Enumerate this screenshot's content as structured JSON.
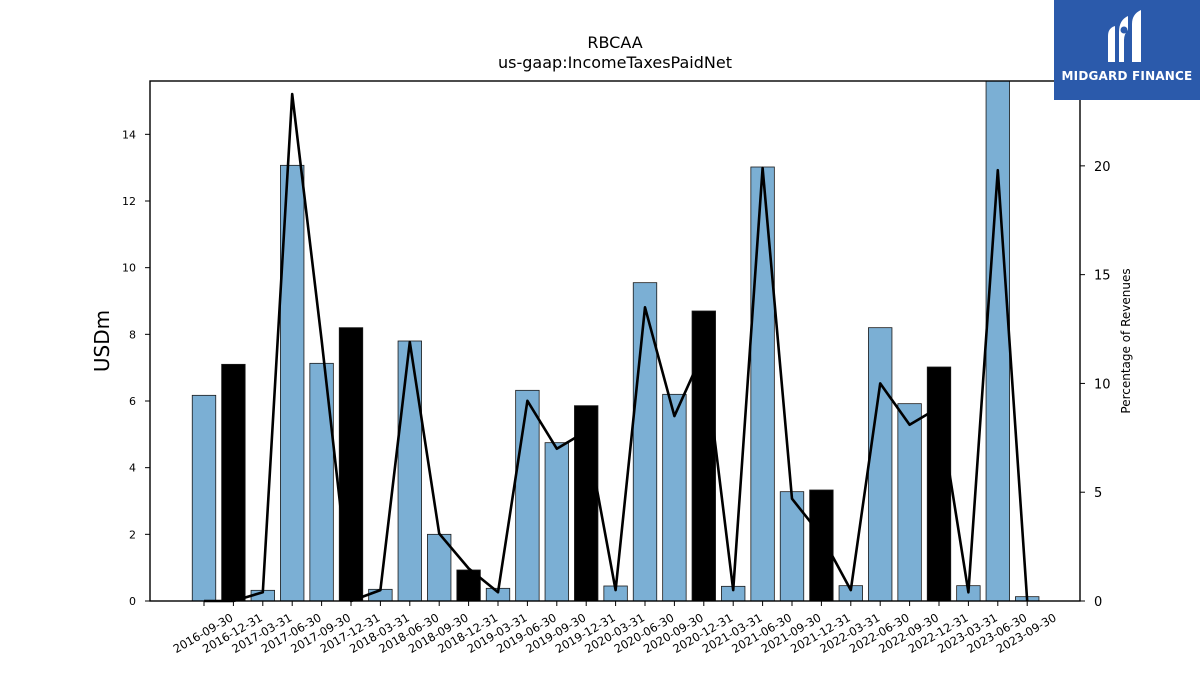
{
  "logo": {
    "name": "MIDGARD FINANCE",
    "icon": "midgard-logo-icon",
    "background": "#2b5aab"
  },
  "chart_data": {
    "type": "bar",
    "title": "RBCAA",
    "subtitle": "us-gaap:IncomeTaxesPaidNet",
    "ylabel": "USDm",
    "ylabel_right": "Percentage of Revenues",
    "ylim": [
      0,
      15.6
    ],
    "ylim_right": [
      0,
      23.9
    ],
    "yticks": [
      0,
      2,
      4,
      6,
      8,
      10,
      12,
      14
    ],
    "yticks_right": [
      0,
      5,
      10,
      15,
      20
    ],
    "categories": [
      "2016-09-30",
      "2016-12-31",
      "2017-03-31",
      "2017-06-30",
      "2017-09-30",
      "2017-12-31",
      "2018-03-31",
      "2018-06-30",
      "2018-09-30",
      "2018-12-31",
      "2019-03-31",
      "2019-06-30",
      "2019-09-30",
      "2019-12-31",
      "2020-03-31",
      "2020-06-30",
      "2020-09-30",
      "2020-12-31",
      "2021-03-31",
      "2021-06-30",
      "2021-09-30",
      "2021-12-31",
      "2022-03-31",
      "2022-06-30",
      "2022-09-30",
      "2022-12-31",
      "2023-03-31",
      "2023-06-30",
      "2023-09-30"
    ],
    "series": [
      {
        "type": "bar",
        "axis": "left",
        "values": [
          6.17,
          7.1,
          0.32,
          13.07,
          7.13,
          8.2,
          0.35,
          7.8,
          2.0,
          0.93,
          0.38,
          6.32,
          4.75,
          5.86,
          0.45,
          9.55,
          6.2,
          8.7,
          0.44,
          13.02,
          3.28,
          3.33,
          0.46,
          8.2,
          5.92,
          7.02,
          0.46,
          15.6,
          0.13
        ],
        "highlight": [
          false,
          true,
          false,
          false,
          false,
          true,
          false,
          false,
          false,
          true,
          false,
          false,
          false,
          true,
          false,
          false,
          false,
          true,
          false,
          false,
          false,
          true,
          false,
          false,
          false,
          true,
          false,
          false,
          false
        ]
      },
      {
        "type": "line",
        "axis": "right",
        "values": [
          0.0,
          0.0,
          0.4,
          23.3,
          12.0,
          0.0,
          0.5,
          11.9,
          3.1,
          1.5,
          0.4,
          9.2,
          7.0,
          7.8,
          0.5,
          13.5,
          8.5,
          11.5,
          0.5,
          19.9,
          4.7,
          3.0,
          0.5,
          10.0,
          8.1,
          8.9,
          0.4,
          19.8,
          0.0
        ]
      }
    ],
    "colors": {
      "bar": "#7bafd4",
      "bar_highlight": "#000000",
      "bar_edge": "#1a1a1a",
      "line": "#000000"
    },
    "grid": false
  }
}
